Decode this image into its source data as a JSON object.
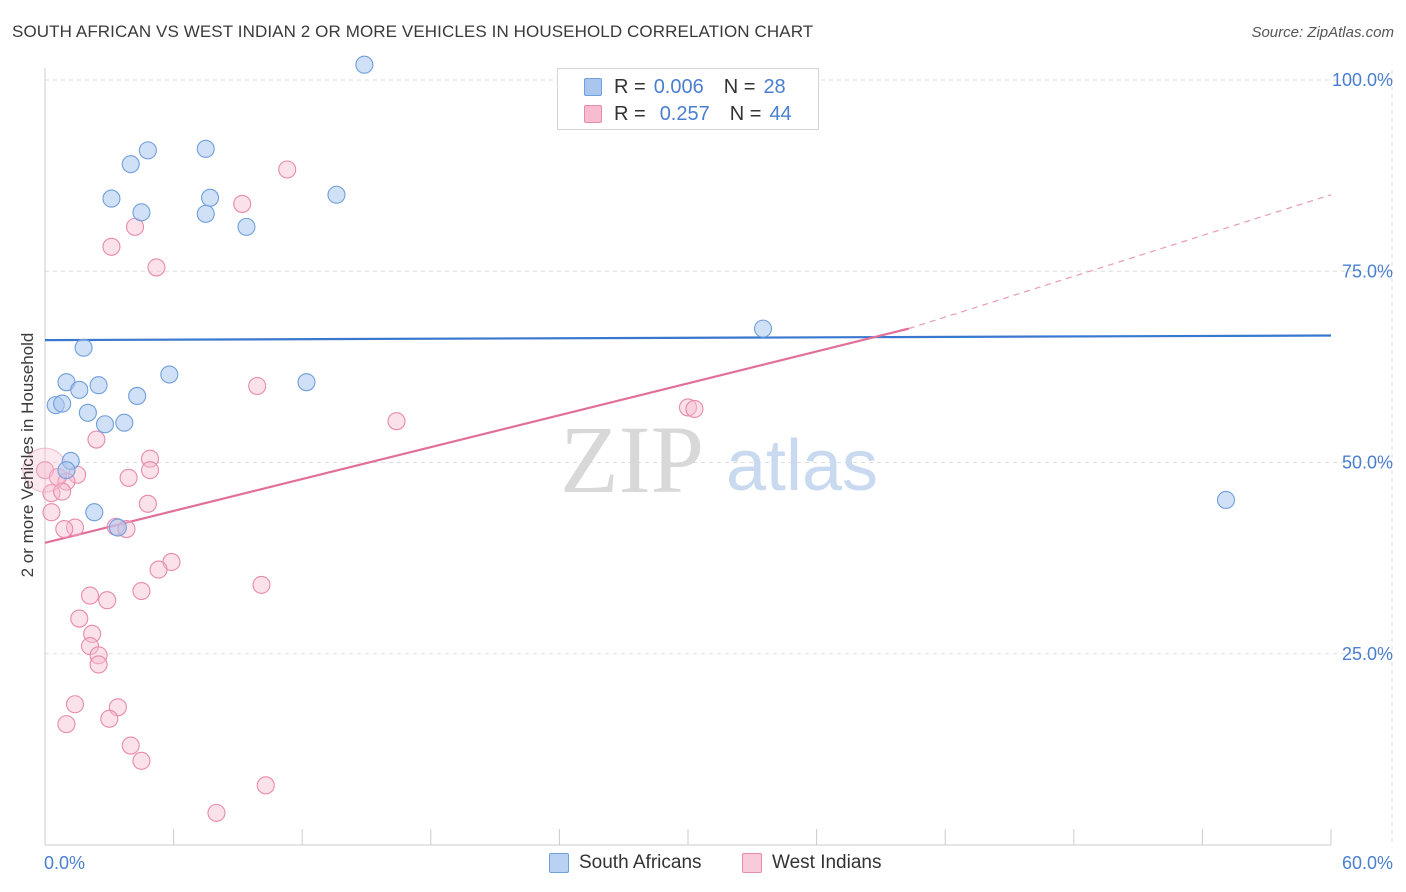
{
  "title": "SOUTH AFRICAN VS WEST INDIAN 2 OR MORE VEHICLES IN HOUSEHOLD CORRELATION CHART",
  "source": "Source: ZipAtlas.com",
  "watermark": {
    "zip": "ZIP",
    "atlas": "atlas"
  },
  "legend_top": {
    "rows": [
      {
        "r_label": "R =",
        "r_value": "0.006",
        "n_label": "N =",
        "n_value": "28"
      },
      {
        "r_label": "R =",
        "r_value": "0.257",
        "n_label": "N =",
        "n_value": "44"
      }
    ]
  },
  "colors": {
    "blue_fill": "#a9c6ef",
    "blue_stroke": "#6f9fdc",
    "blue_line": "#3a78d0",
    "pink_fill": "#f7bcd0",
    "pink_stroke": "#e88aab",
    "pink_line": "#e0709a",
    "tick_text": "#4a7fcf",
    "grid": "#dddddd",
    "axis": "#cccccc"
  },
  "chart_data": {
    "type": "scatter",
    "title": "SOUTH AFRICAN VS WEST INDIAN 2 OR MORE VEHICLES IN HOUSEHOLD CORRELATION CHART",
    "xlabel": "",
    "ylabel": "2 or more Vehicles in Household",
    "xlim": [
      0,
      60
    ],
    "ylim": [
      0,
      100
    ],
    "x_tick_labels": [
      "0.0%",
      "60.0%"
    ],
    "y_ticks": [
      25,
      50,
      75,
      100
    ],
    "y_tick_labels": [
      "25.0%",
      "50.0%",
      "75.0%",
      "100.0%"
    ],
    "grid": true,
    "legend": [
      "South Africans",
      "West Indians"
    ],
    "series": [
      {
        "name": "South Africans",
        "color": "blue",
        "r": 0.006,
        "n": 28,
        "trend": {
          "x": [
            0,
            60
          ],
          "y": [
            66.0,
            66.6
          ]
        },
        "points": [
          [
            14.9,
            102.0
          ],
          [
            7.5,
            91.0
          ],
          [
            4.8,
            90.8
          ],
          [
            4.0,
            89.0
          ],
          [
            13.6,
            85.0
          ],
          [
            3.1,
            84.5
          ],
          [
            7.7,
            84.6
          ],
          [
            4.5,
            82.7
          ],
          [
            7.5,
            82.5
          ],
          [
            9.4,
            80.8
          ],
          [
            33.5,
            67.5
          ],
          [
            1.8,
            65.0
          ],
          [
            5.8,
            61.5
          ],
          [
            12.2,
            60.5
          ],
          [
            1.0,
            60.5
          ],
          [
            2.5,
            60.1
          ],
          [
            1.6,
            59.5
          ],
          [
            4.3,
            58.7
          ],
          [
            0.5,
            57.5
          ],
          [
            0.8,
            57.7
          ],
          [
            2.0,
            56.5
          ],
          [
            3.7,
            55.2
          ],
          [
            2.8,
            55.0
          ],
          [
            1.2,
            50.2
          ],
          [
            1.0,
            49.0
          ],
          [
            55.1,
            45.1
          ],
          [
            2.3,
            43.5
          ],
          [
            3.4,
            41.5
          ]
        ]
      },
      {
        "name": "West Indians",
        "color": "pink",
        "r": 0.257,
        "n": 44,
        "trend": {
          "x": [
            0,
            40.3
          ],
          "y": [
            39.5,
            67.5
          ]
        },
        "trend_dashed": {
          "x": [
            40.3,
            60
          ],
          "y": [
            67.5,
            85.0
          ]
        },
        "points": [
          [
            11.3,
            88.3
          ],
          [
            9.2,
            83.8
          ],
          [
            4.2,
            80.8
          ],
          [
            3.1,
            78.2
          ],
          [
            5.2,
            75.5
          ],
          [
            9.9,
            60.0
          ],
          [
            30.0,
            57.2
          ],
          [
            30.3,
            57.0
          ],
          [
            16.4,
            55.4
          ],
          [
            2.4,
            53.0
          ],
          [
            4.9,
            50.5
          ],
          [
            4.9,
            49.0
          ],
          [
            0.0,
            49.0
          ],
          [
            1.5,
            48.4
          ],
          [
            0.6,
            48.1
          ],
          [
            3.9,
            48.0
          ],
          [
            1.0,
            47.5
          ],
          [
            0.3,
            46.0
          ],
          [
            0.8,
            46.2
          ],
          [
            4.8,
            44.6
          ],
          [
            0.3,
            43.5
          ],
          [
            1.4,
            41.5
          ],
          [
            0.9,
            41.3
          ],
          [
            3.3,
            41.6
          ],
          [
            3.8,
            41.3
          ],
          [
            5.9,
            37.0
          ],
          [
            5.3,
            36.0
          ],
          [
            4.5,
            33.2
          ],
          [
            10.1,
            34.0
          ],
          [
            2.1,
            32.6
          ],
          [
            2.9,
            32.0
          ],
          [
            1.6,
            29.6
          ],
          [
            2.2,
            27.6
          ],
          [
            2.1,
            26.0
          ],
          [
            2.5,
            24.8
          ],
          [
            2.5,
            23.6
          ],
          [
            1.4,
            18.4
          ],
          [
            3.4,
            18.0
          ],
          [
            3.0,
            16.5
          ],
          [
            1.0,
            15.8
          ],
          [
            4.0,
            13.0
          ],
          [
            4.5,
            11.0
          ],
          [
            10.3,
            7.8
          ],
          [
            8.0,
            4.2
          ]
        ]
      }
    ]
  }
}
